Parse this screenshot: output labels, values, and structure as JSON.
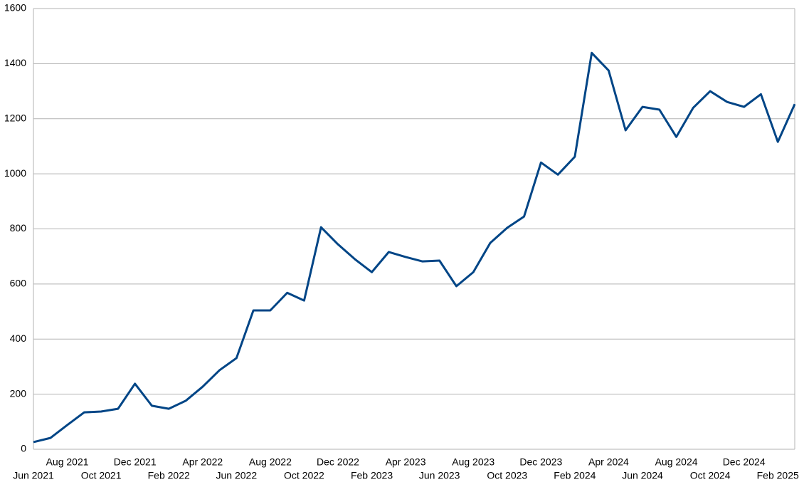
{
  "chart_data": {
    "type": "line",
    "categories": [
      "Jun 2021",
      null,
      "Aug 2021",
      null,
      "Oct 2021",
      null,
      "Dec 2021",
      null,
      "Feb 2022",
      null,
      "Apr 2022",
      null,
      "Jun 2022",
      null,
      "Aug 2022",
      null,
      "Oct 2022",
      null,
      "Dec 2022",
      null,
      "Feb 2023",
      null,
      "Apr 2023",
      null,
      "Jun 2023",
      null,
      "Aug 2023",
      null,
      "Oct 2023",
      null,
      "Dec 2023",
      null,
      "Feb 2024",
      null,
      "Apr 2024",
      null,
      "Jun 2024",
      null,
      "Aug 2024",
      null,
      "Oct 2024",
      null,
      "Dec 2024",
      null,
      "Feb 2025",
      null
    ],
    "values": [
      26,
      41,
      88,
      134,
      137,
      147,
      238,
      158,
      147,
      176,
      227,
      287,
      331,
      504,
      504,
      568,
      540,
      806,
      744,
      690,
      643,
      716,
      698,
      682,
      685,
      592,
      643,
      749,
      804,
      845,
      1041,
      997,
      1062,
      1439,
      1375,
      1158,
      1243,
      1233,
      1134,
      1240,
      1300,
      1261,
      1243,
      1289,
      1116,
      1253
    ],
    "color": "#004586",
    "ylim": [
      0,
      1600
    ],
    "yticks": [
      0,
      200,
      400,
      600,
      800,
      1000,
      1200,
      1400,
      1600
    ],
    "grid": true
  }
}
